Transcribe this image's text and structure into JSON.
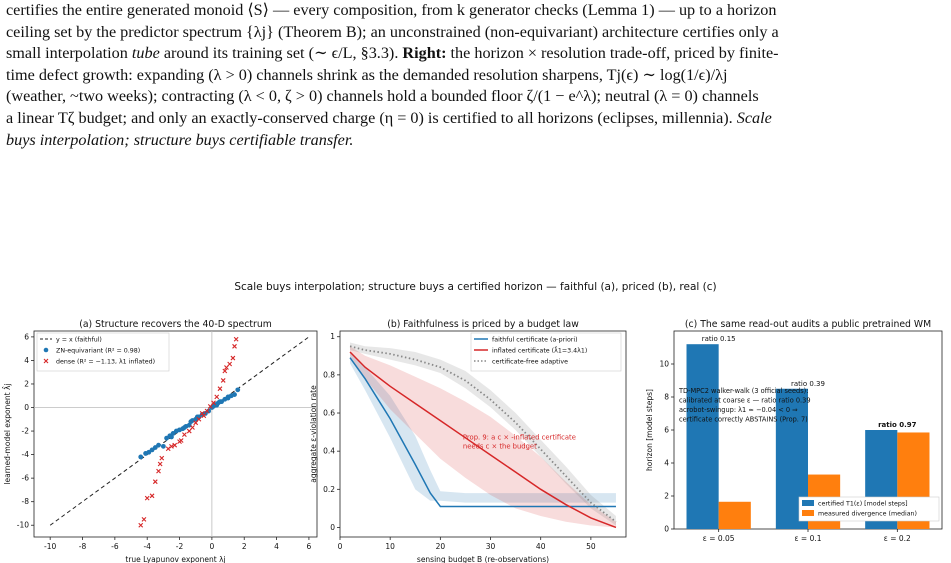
{
  "caption": {
    "line1": "certifies the entire generated monoid ⟨S⟩ — every composition, from k generator checks (Lemma 1) — up to a horizon",
    "line2": "ceiling set by the predictor spectrum {λj} (Theorem B); an unconstrained (non-equivariant) architecture certifies only a",
    "line3_a": "small interpolation ",
    "line3_b": "tube",
    "line3_c": " around its training set (∼ ϵ/L, §3.3). ",
    "line3_bold": "Right:",
    "line3_d": " the horizon × resolution trade-off, priced by finite-",
    "line4": "time defect growth: expanding (λ > 0) channels shrink as the demanded resolution sharpens, Tj(ϵ) ∼ log(1/ϵ)/λj",
    "line5": "(weather, ~two weeks); contracting (λ < 0, ζ > 0) channels hold a bounded floor ζ/(1 − e^λ); neutral (λ = 0) channels",
    "line6_a": "a linear Tζ budget; and only an exactly-conserved charge (η = 0) is certified to all horizons (eclipses, millennia). ",
    "line6_b": "Scale",
    "line7": "buys interpolation; structure buys certifiable transfer."
  },
  "suptitle": "Scale buys interpolation; structure buys a certified horizon — faithful (a), priced (b), real (c)",
  "colors": {
    "blue": "#1f77b4",
    "red": "#d62728",
    "orange": "#ff7f0e",
    "gray": "#888888"
  },
  "chart_data": [
    {
      "type": "scatter",
      "title": "(a) Structure recovers the 40-D spectrum",
      "xlabel": "true Lyapunov exponent λj",
      "ylabel": "learned-model exponent λ̂j",
      "xlim": [
        -11,
        6.5
      ],
      "ylim": [
        -11,
        6.5
      ],
      "xticks": [
        -10,
        -8,
        -6,
        -4,
        -2,
        0,
        2,
        4,
        6
      ],
      "yticks": [
        -10,
        -8,
        -6,
        -4,
        -2,
        0,
        2,
        4,
        6
      ],
      "legend": [
        "y = x (faithful)",
        "ZN-equivariant (R² = 0.98)",
        "dense (R² = −1.13, λ1 inflated)"
      ],
      "legend_position": "upper left",
      "series": [
        {
          "name": "y = x (faithful)",
          "kind": "line",
          "x": [
            -10,
            6
          ],
          "y": [
            -10,
            6
          ]
        },
        {
          "name": "ZN-equivariant (R² = 0.98)",
          "kind": "points",
          "x": [
            -4.4,
            -4.1,
            -3.9,
            -3.7,
            -3.3,
            -3.0,
            -2.8,
            -2.6,
            -2.4,
            -2.2,
            -2.0,
            -1.8,
            -1.6,
            -1.4,
            -1.2,
            -1.0,
            -0.8,
            -0.6,
            -0.4,
            -0.2,
            0.0,
            0.2,
            0.4,
            0.6,
            0.8,
            1.0,
            1.2,
            1.4,
            1.6,
            1.0,
            -2.5,
            -1.7,
            0.3,
            -3.5,
            0.5,
            -0.9,
            -1.3,
            0.1
          ],
          "y": [
            -4.2,
            -3.9,
            -3.8,
            -3.6,
            -3.2,
            -3.3,
            -2.6,
            -2.4,
            -2.2,
            -2.0,
            -1.9,
            -1.8,
            -1.6,
            -1.5,
            -1.1,
            -1.0,
            -0.8,
            -0.6,
            -0.5,
            -0.3,
            0.0,
            0.25,
            0.4,
            0.5,
            0.7,
            0.8,
            1.0,
            1.1,
            1.5,
            0.9,
            -2.5,
            -1.7,
            0.2,
            -3.4,
            0.5,
            -0.8,
            -1.2,
            0.1
          ]
        },
        {
          "name": "dense (R² = −1.13, λ1 inflated)",
          "kind": "crosses",
          "x": [
            -4.4,
            -4.2,
            -4.0,
            -3.7,
            -3.5,
            -3.3,
            -3.2,
            -3.1,
            -2.7,
            -2.3,
            -2.0,
            -1.7,
            -1.4,
            -1.2,
            -1.0,
            -0.8,
            -0.5,
            -0.3,
            -0.1,
            0.1,
            0.3,
            0.5,
            0.7,
            0.9,
            1.1,
            1.3,
            1.5,
            1.4,
            0.8,
            -0.6,
            -2.5,
            -1.9
          ],
          "y": [
            -10.0,
            -9.5,
            -7.7,
            -7.5,
            -6.3,
            -5.4,
            -4.8,
            -4.3,
            -3.5,
            -3.2,
            -2.9,
            -2.3,
            -2.0,
            -1.7,
            -1.3,
            -1.0,
            -0.7,
            -0.3,
            0.1,
            0.4,
            0.9,
            1.6,
            2.3,
            3.4,
            3.7,
            4.2,
            5.8,
            5.2,
            3.1,
            -0.5,
            -3.3,
            -2.8
          ]
        }
      ]
    },
    {
      "type": "line",
      "title": "(b) Faithfulness is priced by a budget law",
      "xlabel": "sensing budget B (re-observations)",
      "ylabel": "aggregate ε-violation rate",
      "xlim": [
        0,
        57
      ],
      "ylim": [
        -0.05,
        1.03
      ],
      "xticks": [
        0,
        10,
        20,
        30,
        40,
        50
      ],
      "yticks": [
        0.0,
        0.2,
        0.4,
        0.6,
        0.8,
        1.0
      ],
      "legend": [
        "faithful certificate (a-priori)",
        "inflated certificate (λ̂1=3.4λ1)",
        "certificate-free adaptive"
      ],
      "legend_position": "upper right",
      "annotation": [
        "Prop. 9: a c × -inflated certificate",
        "needs c × the budget"
      ],
      "series": [
        {
          "name": "faithful certificate (a-priori)",
          "x": [
            2,
            5,
            10,
            15,
            18,
            20,
            25,
            30,
            40,
            50,
            55
          ],
          "y": [
            0.89,
            0.78,
            0.57,
            0.33,
            0.18,
            0.11,
            0.11,
            0.11,
            0.11,
            0.11,
            0.11
          ],
          "lower": [
            0.86,
            0.72,
            0.47,
            0.2,
            0.14,
            0.14,
            0.13,
            0.13,
            0.13,
            0.13,
            0.13
          ],
          "upper": [
            0.92,
            0.84,
            0.69,
            0.48,
            0.3,
            0.19,
            0.18,
            0.18,
            0.18,
            0.18,
            0.18
          ]
        },
        {
          "name": "inflated certificate (λ̂1=3.4λ1)",
          "x": [
            2,
            5,
            10,
            15,
            20,
            25,
            30,
            35,
            40,
            45,
            50,
            55
          ],
          "y": [
            0.92,
            0.84,
            0.74,
            0.65,
            0.56,
            0.47,
            0.38,
            0.29,
            0.2,
            0.12,
            0.05,
            0.0
          ],
          "lower": [
            0.9,
            0.78,
            0.62,
            0.49,
            0.36,
            0.26,
            0.17,
            0.1,
            0.06,
            0.03,
            0.01,
            0.0
          ],
          "upper": [
            0.95,
            0.9,
            0.85,
            0.79,
            0.73,
            0.66,
            0.58,
            0.48,
            0.37,
            0.24,
            0.12,
            0.03
          ]
        },
        {
          "name": "certificate-free adaptive",
          "x": [
            2,
            5,
            10,
            15,
            20,
            25,
            30,
            35,
            40,
            45,
            50,
            55
          ],
          "y": [
            0.95,
            0.93,
            0.91,
            0.88,
            0.84,
            0.77,
            0.67,
            0.55,
            0.41,
            0.27,
            0.13,
            0.03
          ],
          "lower": [
            0.93,
            0.91,
            0.88,
            0.85,
            0.81,
            0.73,
            0.63,
            0.51,
            0.37,
            0.23,
            0.1,
            0.01
          ],
          "upper": [
            0.97,
            0.95,
            0.94,
            0.92,
            0.88,
            0.82,
            0.72,
            0.6,
            0.46,
            0.32,
            0.17,
            0.06
          ]
        }
      ]
    },
    {
      "type": "bar",
      "title": "(c) The same read-out audits a public pretrained WM",
      "ylabel": "horizon [model steps]",
      "categories": [
        "ε = 0.05",
        "ε = 0.1",
        "ε = 0.2"
      ],
      "ylim": [
        0,
        12
      ],
      "yticks": [
        0,
        2,
        4,
        6,
        8,
        10
      ],
      "legend": [
        "certified T1(ε) [model steps]",
        "measured divergence (median)"
      ],
      "legend_position": "lower right",
      "series": [
        {
          "name": "certified T1(ε) [model steps]",
          "values": [
            11.2,
            8.5,
            6.0
          ]
        },
        {
          "name": "measured divergence (median)",
          "values": [
            1.65,
            3.3,
            5.85
          ]
        }
      ],
      "bar_labels": [
        "ratio 0.15",
        "ratio 0.39",
        "ratio 0.97"
      ],
      "annotation": [
        "TD-MPC2 walker-walk (3 official seeds):",
        "calibrated at coarse ε — ratio ratio 0.39",
        "acrobot-swingup: λ1 ≈ −0.04 < 0 ⇒",
        "certificate correctly ABSTAINS (Prop. 7)"
      ]
    }
  ]
}
